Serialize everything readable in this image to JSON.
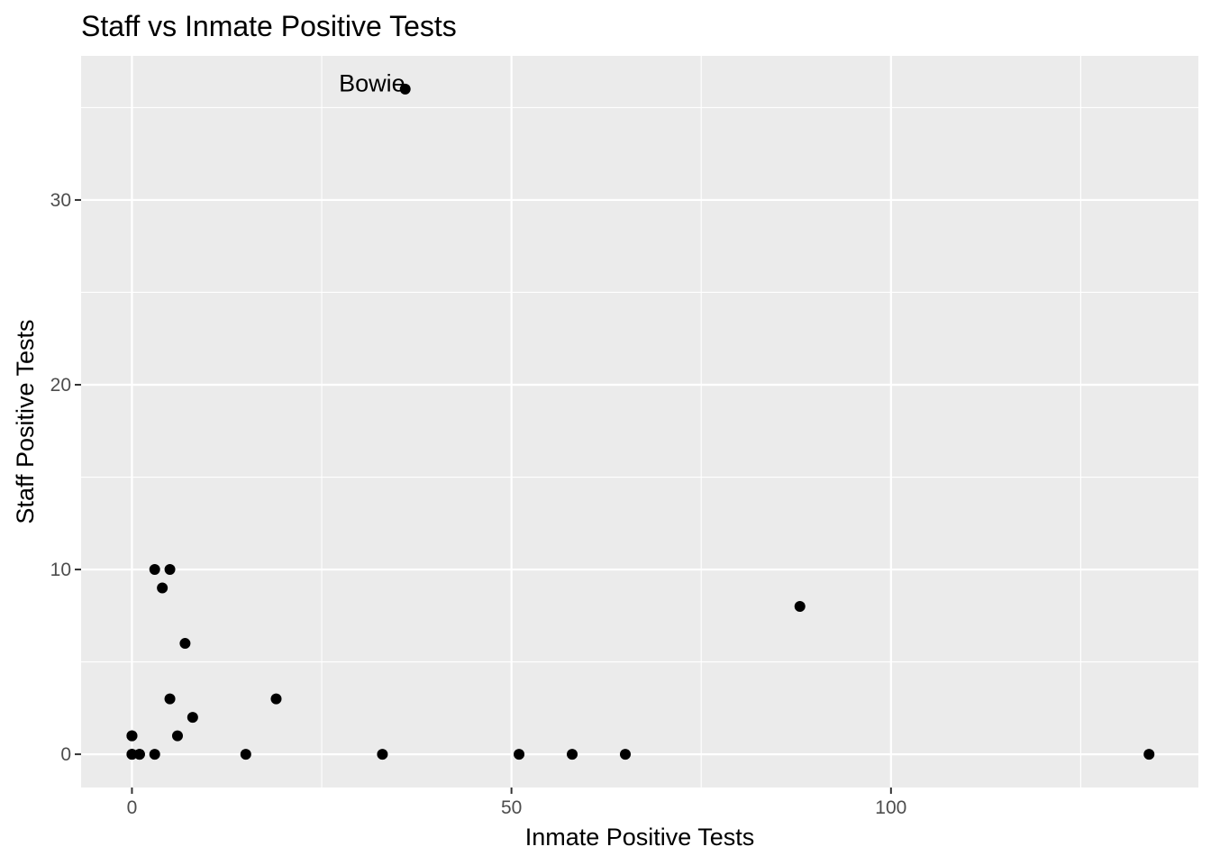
{
  "chart_data": {
    "type": "scatter",
    "title": "Staff vs Inmate Positive Tests",
    "xlabel": "Inmate Positive Tests",
    "ylabel": "Staff Positive Tests",
    "xlim": [
      -6.7,
      140.5
    ],
    "ylim": [
      -1.8,
      37.8
    ],
    "x_ticks": [
      0,
      50,
      100
    ],
    "y_ticks": [
      0,
      10,
      20,
      30
    ],
    "x_tick_labels": [
      "0",
      "50",
      "100"
    ],
    "y_tick_labels": [
      "0",
      "10",
      "20",
      "30"
    ],
    "grid": true,
    "legend": "none",
    "point_color": "#000000",
    "panel_color": "#ebebeb",
    "points": [
      {
        "x": 0,
        "y": 0
      },
      {
        "x": 0,
        "y": 1
      },
      {
        "x": 0,
        "y": 1
      },
      {
        "x": 0,
        "y": 0
      },
      {
        "x": 1,
        "y": 0
      },
      {
        "x": 1,
        "y": 0
      },
      {
        "x": 3,
        "y": 0
      },
      {
        "x": 3,
        "y": 10
      },
      {
        "x": 4,
        "y": 9
      },
      {
        "x": 5,
        "y": 10
      },
      {
        "x": 5,
        "y": 3
      },
      {
        "x": 6,
        "y": 1
      },
      {
        "x": 7,
        "y": 6
      },
      {
        "x": 8,
        "y": 2
      },
      {
        "x": 15,
        "y": 0
      },
      {
        "x": 19,
        "y": 3
      },
      {
        "x": 33,
        "y": 0
      },
      {
        "x": 36,
        "y": 36
      },
      {
        "x": 51,
        "y": 0
      },
      {
        "x": 58,
        "y": 0
      },
      {
        "x": 65,
        "y": 0
      },
      {
        "x": 88,
        "y": 8
      },
      {
        "x": 134,
        "y": 0
      }
    ],
    "annotations": [
      {
        "text": "Bowie",
        "x": 36,
        "y": 36
      }
    ]
  }
}
